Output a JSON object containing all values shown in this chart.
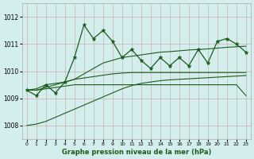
{
  "xlabel": "Graphe pression niveau de la mer (hPa)",
  "bg_color": "#d4eeee",
  "grid_color": "#c8b0b0",
  "line_color": "#1a5c1a",
  "xlim": [
    -0.5,
    23.5
  ],
  "ylim": [
    1007.5,
    1012.5
  ],
  "yticks": [
    1008,
    1009,
    1010,
    1011,
    1012
  ],
  "xticks": [
    0,
    1,
    2,
    3,
    4,
    5,
    6,
    7,
    8,
    9,
    10,
    11,
    12,
    13,
    14,
    15,
    16,
    17,
    18,
    19,
    20,
    21,
    22,
    23
  ],
  "hours": [
    0,
    1,
    2,
    3,
    4,
    5,
    6,
    7,
    8,
    9,
    10,
    11,
    12,
    13,
    14,
    15,
    16,
    17,
    18,
    19,
    20,
    21,
    22,
    23
  ],
  "main_series": [
    1009.3,
    1009.1,
    1009.5,
    1009.2,
    1009.6,
    1010.5,
    1011.7,
    1011.2,
    1011.5,
    1011.1,
    1010.5,
    1010.8,
    1010.4,
    1010.1,
    1010.5,
    1010.2,
    1010.5,
    1010.2,
    1010.8,
    1010.3,
    1011.1,
    1011.2,
    1011.0,
    1010.7
  ],
  "trend_high": [
    1009.3,
    1009.3,
    1009.4,
    1009.5,
    1009.6,
    1009.7,
    1009.9,
    1010.1,
    1010.3,
    1010.4,
    1010.5,
    1010.55,
    1010.6,
    1010.65,
    1010.7,
    1010.72,
    1010.75,
    1010.78,
    1010.8,
    1010.82,
    1010.85,
    1010.88,
    1010.9,
    1010.92
  ],
  "trend_low": [
    1008.0,
    1008.05,
    1008.15,
    1008.3,
    1008.45,
    1008.6,
    1008.75,
    1008.9,
    1009.05,
    1009.2,
    1009.35,
    1009.47,
    1009.55,
    1009.6,
    1009.65,
    1009.68,
    1009.7,
    1009.72,
    1009.74,
    1009.76,
    1009.78,
    1009.8,
    1009.82,
    1009.84
  ],
  "step_high": [
    1009.3,
    1009.35,
    1009.5,
    1009.55,
    1009.6,
    1009.7,
    1009.75,
    1009.8,
    1009.85,
    1009.9,
    1009.93,
    1009.95,
    1009.95,
    1009.95,
    1009.95,
    1009.95,
    1009.95,
    1009.95,
    1009.95,
    1009.95,
    1009.95,
    1009.95,
    1009.95,
    1009.95
  ],
  "step_low": [
    1009.3,
    1009.3,
    1009.35,
    1009.4,
    1009.45,
    1009.5,
    1009.5,
    1009.5,
    1009.5,
    1009.5,
    1009.5,
    1009.5,
    1009.5,
    1009.5,
    1009.5,
    1009.5,
    1009.5,
    1009.5,
    1009.5,
    1009.5,
    1009.5,
    1009.5,
    1009.5,
    1009.1
  ]
}
